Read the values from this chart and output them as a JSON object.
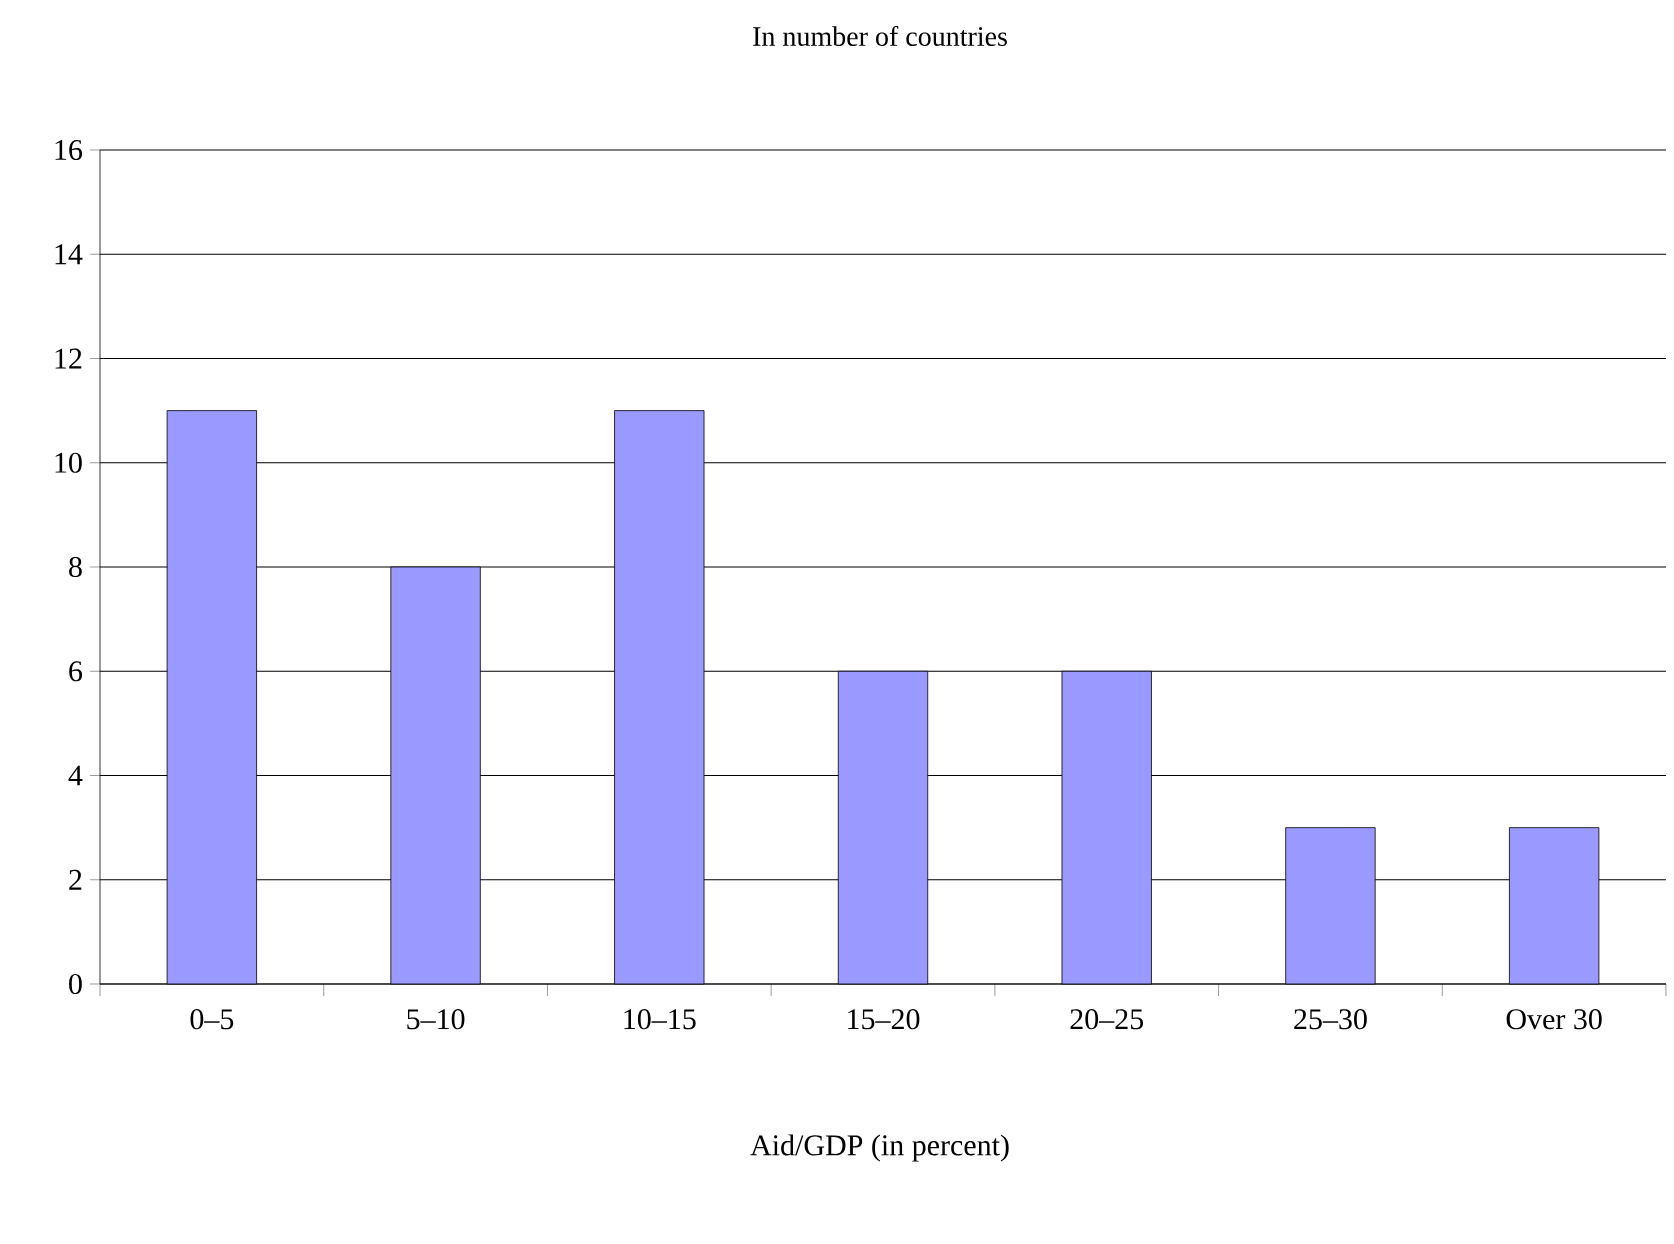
{
  "chart_data": {
    "type": "bar",
    "title": "In number of countries",
    "xlabel": "Aid/GDP (in percent)",
    "categories": [
      "0–5",
      "5–10",
      "10–15",
      "15–20",
      "20–25",
      "25–30",
      "Over 30"
    ],
    "values": [
      11,
      8,
      11,
      6,
      6,
      3,
      3
    ],
    "color": "#9999ff",
    "ylim": [
      0,
      16
    ],
    "yticks": [
      0,
      2,
      4,
      6,
      8,
      10,
      12,
      14,
      16
    ],
    "grid": "y"
  }
}
